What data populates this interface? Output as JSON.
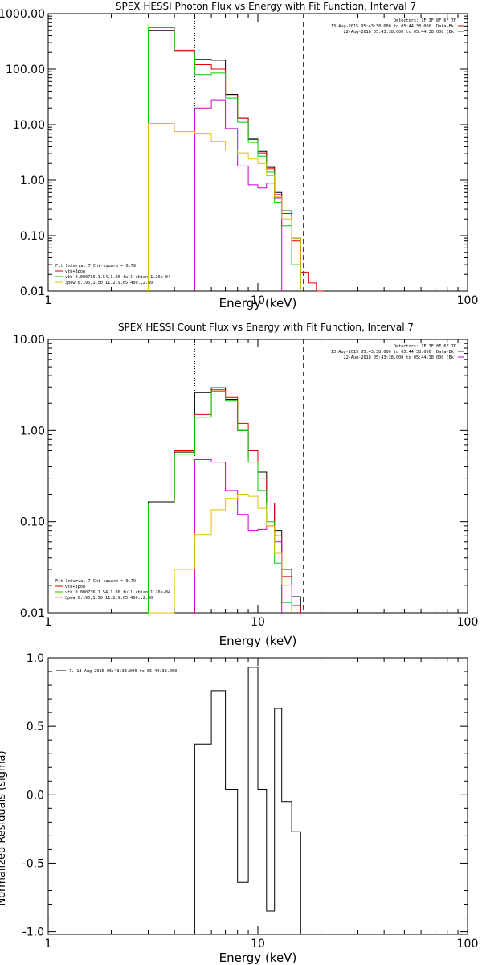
{
  "chart_data": [
    {
      "type": "line",
      "title": "SPEX HESSI Photon Flux vs Energy with Fit Function, Interval 7",
      "xlabel": "Energy (keV)",
      "ylabel": "",
      "xscale": "log",
      "yscale": "log",
      "xlim": [
        1,
        100
      ],
      "ylim": [
        0.01,
        1000
      ],
      "xticks": [
        "1",
        "10",
        "100"
      ],
      "yticks": [
        "0.01",
        "0.10",
        "1.00",
        "10.00",
        "100.00",
        "1000.00"
      ],
      "vlines": [
        {
          "x": 5.0,
          "style": "dotted"
        },
        {
          "x": 16.5,
          "style": "dashed"
        }
      ],
      "legend_top": [
        "Detectors: 1F 3F 8F 6F 7F",
        "13-Aug-2015 05:43:38.000 to 05:44:38.000 (Data-Bk)",
        "22-Aug-2018 05:43:38.000 to 05:44:38.000 (Bk)"
      ],
      "legend_bottom": [
        "Fit Interval 7   Chi-square = 0.79",
        "vth+3pow",
        "vth 0.000736,1.54,1.00   full chian 1.26e-04",
        "3pow 0.195,1.50,11.2,9.65,400.,2.50"
      ],
      "series": [
        {
          "color": "#000000",
          "edges": [
            3.0,
            4.0,
            5.0,
            6.0,
            7.0,
            8.0,
            9.0,
            10.0,
            11.0,
            12.0,
            13.0,
            14.5,
            16.0
          ],
          "values": [
            500,
            210,
            150,
            145,
            35,
            13,
            5.5,
            3.3,
            1.7,
            0.6,
            0.28,
            0.09
          ]
        },
        {
          "color": "#dd0000",
          "edges": [
            3.0,
            4.0,
            5.0,
            6.0,
            7.0,
            8.0,
            9.0,
            10.0,
            11.0,
            12.0,
            13.0,
            14.5,
            16.0,
            17.5,
            19.0,
            20.5
          ],
          "values": [
            560,
            220,
            120,
            100,
            33,
            13,
            5.4,
            3.1,
            1.6,
            0.55,
            0.25,
            0.08,
            0.022,
            0.014,
            0.01
          ]
        },
        {
          "color": "#00cc00",
          "edges": [
            3.0,
            4.0,
            5.0,
            6.0,
            7.0,
            8.0,
            9.0,
            10.0,
            11.0,
            12.0,
            13.0,
            14.5,
            16.0
          ],
          "values": [
            560,
            210,
            80,
            85,
            30,
            11,
            4.8,
            2.7,
            1.4,
            0.4,
            0.15,
            0.03
          ]
        },
        {
          "color": "#cc00cc",
          "edges": [
            5.0,
            6.0,
            7.0,
            8.0,
            9.0,
            10.0,
            11.0,
            12.0,
            13.0
          ],
          "values": [
            20,
            28,
            8.5,
            1.8,
            0.82,
            0.72,
            0.88,
            0.48
          ]
        },
        {
          "color": "#e0c000",
          "edges": [
            3.0,
            4.0,
            5.0,
            6.0,
            7.0,
            8.0,
            9.0,
            10.0,
            11.0,
            12.0,
            13.0,
            14.5,
            16.0
          ],
          "values": [
            10.5,
            7.5,
            6.8,
            5.0,
            3.5,
            3.1,
            2.4,
            2.0,
            1.2,
            0.5,
            0.2,
            0.09
          ]
        }
      ]
    },
    {
      "type": "line",
      "title": "SPEX HESSI Count Flux vs Energy with Fit Function, Interval 7",
      "xlabel": "Energy (keV)",
      "ylabel": "",
      "xscale": "log",
      "yscale": "log",
      "xlim": [
        1,
        100
      ],
      "ylim": [
        0.01,
        10
      ],
      "xticks": [
        "1",
        "10",
        "100"
      ],
      "yticks": [
        "0.01",
        "0.10",
        "1.00",
        "10.00"
      ],
      "vlines": [
        {
          "x": 5.0,
          "style": "dotted"
        },
        {
          "x": 16.5,
          "style": "dashed"
        }
      ],
      "legend_top": [
        "Detectors: 1F 3F 8F 6F 7F",
        "13-Aug-2015 05:43:38.000 to 05:44:38.000 (Data-Bk)",
        "22-Aug-2018 05:43:38.000 to 05:44:38.000 (Bk)"
      ],
      "legend_bottom": [
        "Fit Interval 7   Chi-square = 0.79",
        "vth+3pow",
        "vth 0.000736,1.54,1.00   full chian 1.26e-04",
        "3pow 0.195,1.50,11.2,9.65,400.,2.50"
      ],
      "series": [
        {
          "color": "#000000",
          "edges": [
            3.0,
            4.0,
            5.0,
            6.0,
            7.0,
            8.0,
            9.0,
            10.0,
            11.0,
            12.0,
            13.0,
            14.5,
            16.0
          ],
          "values": [
            0.165,
            0.58,
            2.6,
            2.95,
            2.2,
            1.0,
            0.5,
            0.35,
            0.16,
            0.08,
            0.03,
            0.015
          ]
        },
        {
          "color": "#dd0000",
          "edges": [
            3.0,
            4.0,
            5.0,
            6.0,
            7.0,
            8.0,
            9.0,
            10.0,
            11.0,
            12.0,
            13.0,
            14.5,
            16.0
          ],
          "values": [
            0.16,
            0.6,
            1.5,
            2.8,
            2.3,
            1.2,
            0.6,
            0.3,
            0.16,
            0.07,
            0.025,
            0.012
          ]
        },
        {
          "color": "#00cc00",
          "edges": [
            3.0,
            4.0,
            5.0,
            6.0,
            7.0,
            8.0,
            9.0,
            10.0,
            11.0,
            12.0,
            13.0,
            14.5
          ],
          "values": [
            0.16,
            0.55,
            1.4,
            2.7,
            2.1,
            1.0,
            0.45,
            0.22,
            0.1,
            0.035,
            0.013
          ]
        },
        {
          "color": "#cc00cc",
          "edges": [
            5.0,
            6.0,
            7.0,
            8.0,
            9.0,
            10.0,
            11.0,
            12.0,
            13.0
          ],
          "values": [
            0.48,
            0.45,
            0.22,
            0.12,
            0.08,
            0.082,
            0.09,
            0.06
          ]
        },
        {
          "color": "#e0c000",
          "edges": [
            3.0,
            4.0,
            5.0,
            6.0,
            7.0,
            8.0,
            9.0,
            10.0,
            11.0,
            12.0,
            13.0,
            14.5
          ],
          "values": [
            0.01,
            0.03,
            0.072,
            0.135,
            0.18,
            0.2,
            0.19,
            0.14,
            0.09,
            0.045,
            0.02
          ]
        }
      ]
    },
    {
      "type": "line",
      "title": "",
      "xlabel": "Energy (keV)",
      "ylabel": "Normalized Residuals (sigma)",
      "xscale": "log",
      "yscale": "linear",
      "xlim": [
        1,
        100
      ],
      "ylim": [
        -1.0,
        1.0
      ],
      "xticks": [
        "1",
        "10",
        "100"
      ],
      "yticks": [
        "-1.0",
        "-0.5",
        "0.0",
        "0.5",
        "1.0"
      ],
      "legend_top": [
        "7. 13-Aug-2015 05:43:38.000 to 05:44:38.000"
      ],
      "series": [
        {
          "color": "#000000",
          "edges": [
            5.0,
            6.0,
            7.0,
            8.0,
            9.0,
            10.0,
            11.0,
            12.0,
            13.0,
            14.5,
            16.0
          ],
          "values": [
            0.37,
            0.76,
            0.04,
            -0.64,
            0.93,
            0.04,
            -0.85,
            0.63,
            -0.05,
            -0.27
          ]
        }
      ]
    }
  ]
}
